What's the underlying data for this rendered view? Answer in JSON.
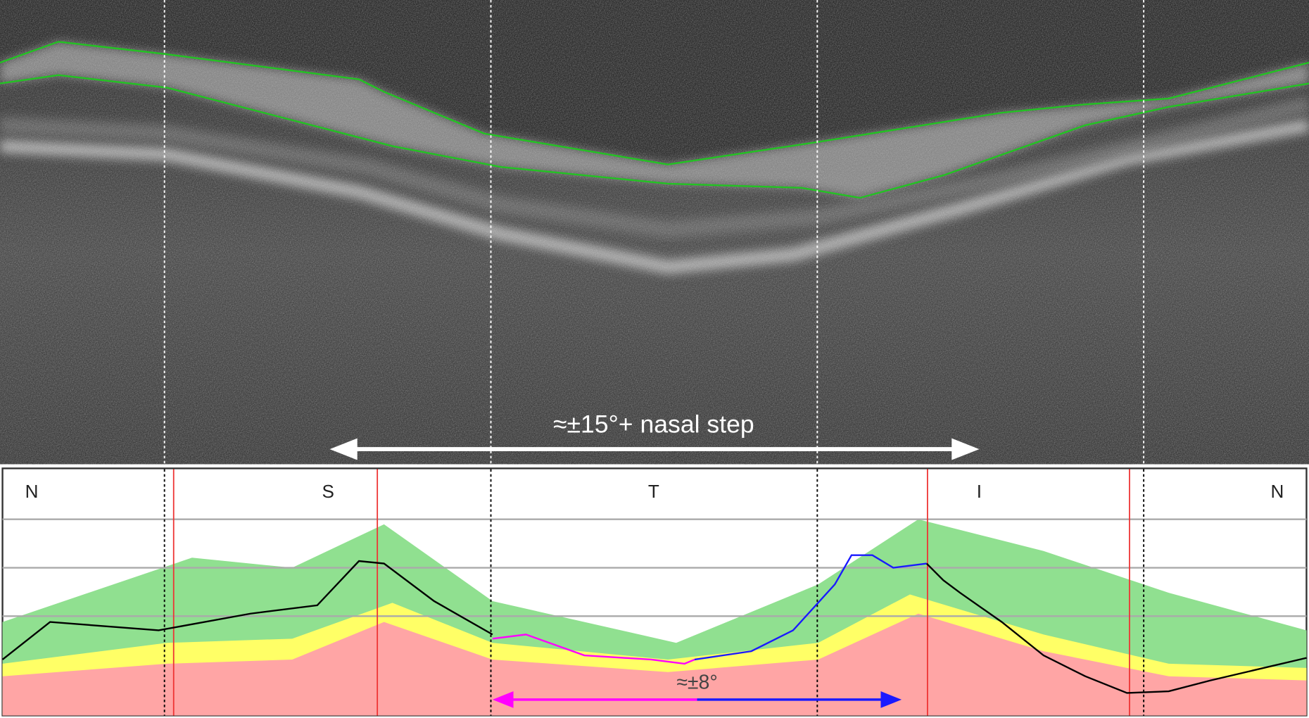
{
  "top_panel": {
    "arrow_label": "≈±15°+ nasal step"
  },
  "bottom_panel": {
    "sector_labels": [
      "N",
      "S",
      "T",
      "I",
      "N"
    ],
    "arrow_label": "≈±8°"
  }
}
